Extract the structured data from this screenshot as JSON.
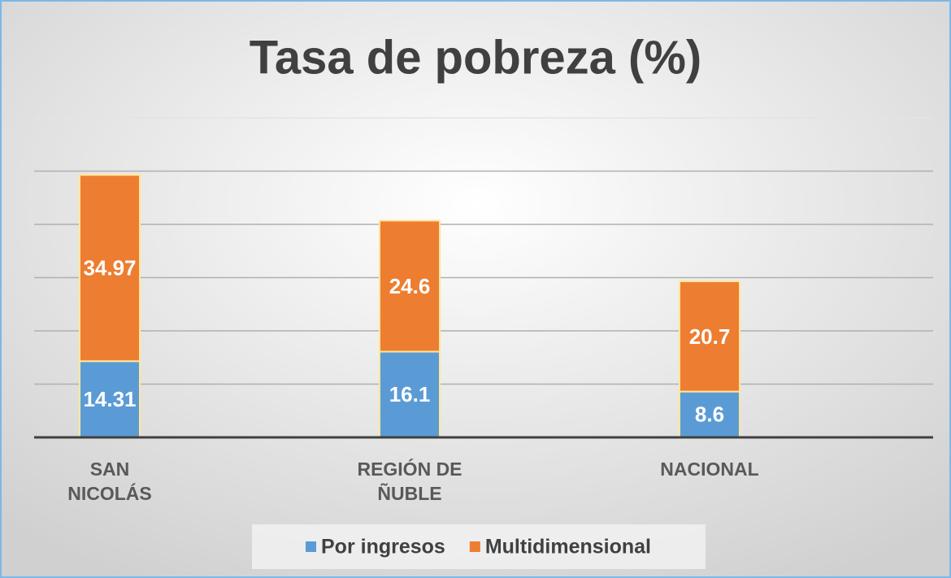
{
  "chart_data": {
    "type": "stacked_bar",
    "title": "Tasa de pobreza (%)",
    "categories": [
      "SAN\nNICOLÁS",
      "REGIÓN DE\nÑUBLE",
      "NACIONAL"
    ],
    "series": [
      {
        "name": "Por ingresos",
        "color": "#5b9bd5",
        "values": [
          14.31,
          16.1,
          8.6
        ]
      },
      {
        "name": "Multidimensional",
        "color": "#ed7d31",
        "values": [
          34.97,
          24.6,
          20.7
        ]
      }
    ],
    "ylim": [
      0,
      60
    ],
    "yticks": [
      0,
      10,
      20,
      30,
      40,
      50,
      60
    ],
    "grid": true,
    "legend": "bottom"
  }
}
